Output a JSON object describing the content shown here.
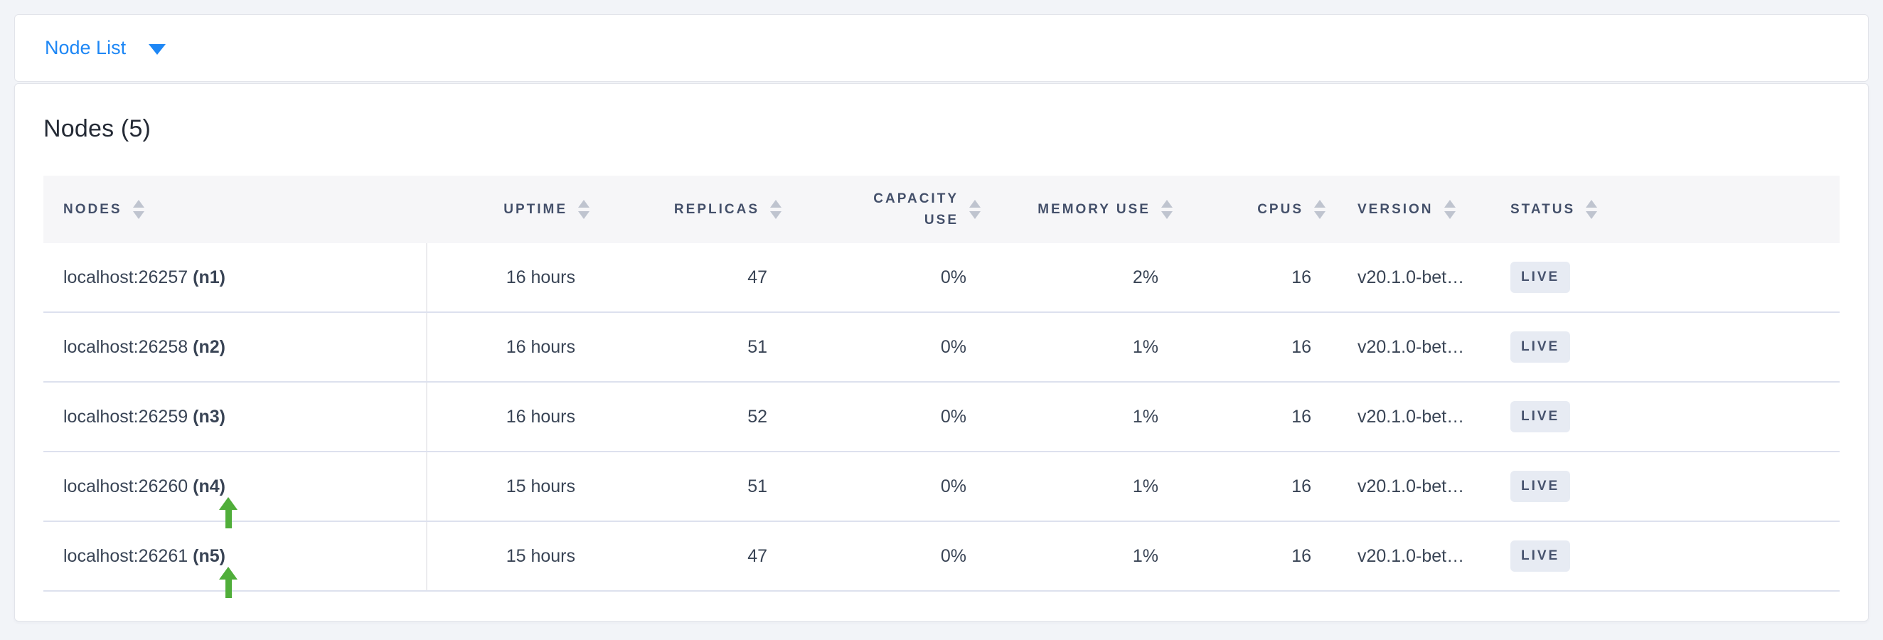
{
  "topbar": {
    "dropdown_label": "Node List"
  },
  "main": {
    "title": "Nodes (5)"
  },
  "table": {
    "columns": [
      {
        "key": "nodes",
        "label": "NODES",
        "align": "left"
      },
      {
        "key": "uptime",
        "label": "UPTIME",
        "align": "right"
      },
      {
        "key": "replicas",
        "label": "REPLICAS",
        "align": "right"
      },
      {
        "key": "capacity_use",
        "label": "CAPACITY USE",
        "align": "right",
        "two_line": true
      },
      {
        "key": "memory_use",
        "label": "MEMORY USE",
        "align": "right"
      },
      {
        "key": "cpus",
        "label": "CPUS",
        "align": "right"
      },
      {
        "key": "version",
        "label": "VERSION",
        "align": "left"
      },
      {
        "key": "status",
        "label": "STATUS",
        "align": "left"
      }
    ],
    "rows": [
      {
        "address": "localhost:26257",
        "node_id": "(n1)",
        "uptime": "16 hours",
        "replicas": "47",
        "capacity_use": "0%",
        "memory_use": "2%",
        "cpus": "16",
        "version": "v20.1.0-bet…",
        "status": "LIVE",
        "annotated": false
      },
      {
        "address": "localhost:26258",
        "node_id": "(n2)",
        "uptime": "16 hours",
        "replicas": "51",
        "capacity_use": "0%",
        "memory_use": "1%",
        "cpus": "16",
        "version": "v20.1.0-bet…",
        "status": "LIVE",
        "annotated": false
      },
      {
        "address": "localhost:26259",
        "node_id": "(n3)",
        "uptime": "16 hours",
        "replicas": "52",
        "capacity_use": "0%",
        "memory_use": "1%",
        "cpus": "16",
        "version": "v20.1.0-bet…",
        "status": "LIVE",
        "annotated": false
      },
      {
        "address": "localhost:26260",
        "node_id": "(n4)",
        "uptime": "15 hours",
        "replicas": "51",
        "capacity_use": "0%",
        "memory_use": "1%",
        "cpus": "16",
        "version": "v20.1.0-bet…",
        "status": "LIVE",
        "annotated": true
      },
      {
        "address": "localhost:26261",
        "node_id": "(n5)",
        "uptime": "15 hours",
        "replicas": "47",
        "capacity_use": "0%",
        "memory_use": "1%",
        "cpus": "16",
        "version": "v20.1.0-bet…",
        "status": "LIVE",
        "annotated": true
      }
    ]
  },
  "icons": {
    "dropdown_caret": "chevron-down",
    "sort": "sort-up-down-triangles",
    "annotation": "green-arrow-up"
  },
  "colors": {
    "accent_blue": "#1e87f5",
    "arrow_green": "#50ae3a",
    "badge_bg": "#e7ebf3",
    "badge_text": "#47536e",
    "header_text": "#44506a",
    "row_text": "#394455",
    "page_bg": "#f2f4f8"
  }
}
